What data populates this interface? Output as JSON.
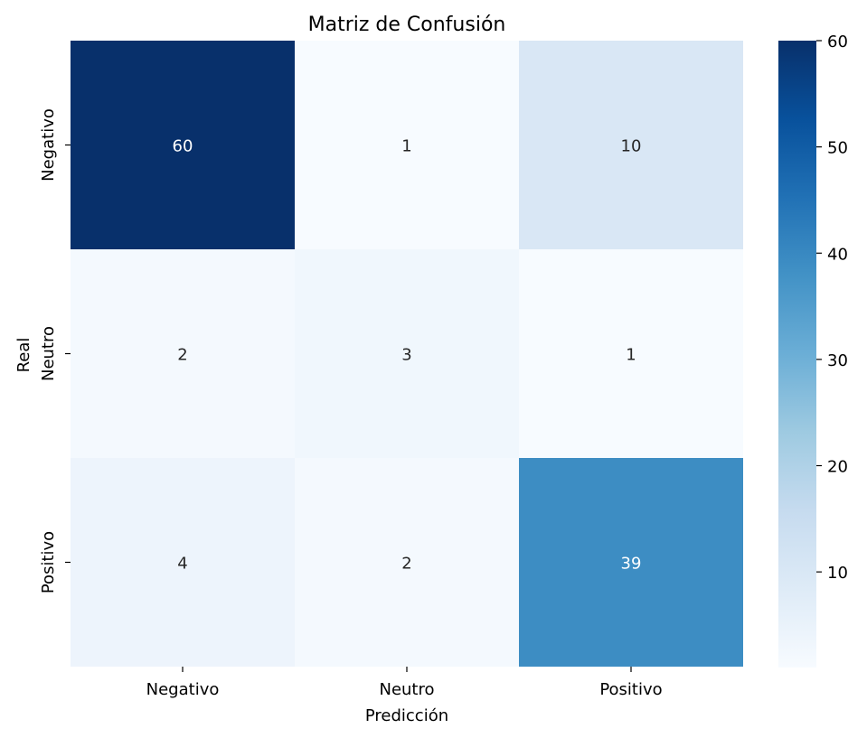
{
  "chart_data": {
    "type": "heatmap",
    "title": "Matriz de Confusión",
    "xlabel": "Predicción",
    "ylabel": "Real",
    "x_categories": [
      "Negativo",
      "Neutro",
      "Positivo"
    ],
    "y_categories": [
      "Negativo",
      "Neutro",
      "Positivo"
    ],
    "values": [
      [
        60,
        1,
        10
      ],
      [
        2,
        3,
        1
      ],
      [
        4,
        2,
        39
      ]
    ],
    "colorscale": "Blues",
    "colorbar": {
      "range": [
        1,
        60
      ],
      "ticks": [
        10,
        20,
        30,
        40,
        50,
        60
      ]
    },
    "colors": {
      "low": "#f7fbff",
      "high": "#08306b",
      "light_text": "#ffffff",
      "dark_text": "#262626"
    }
  }
}
